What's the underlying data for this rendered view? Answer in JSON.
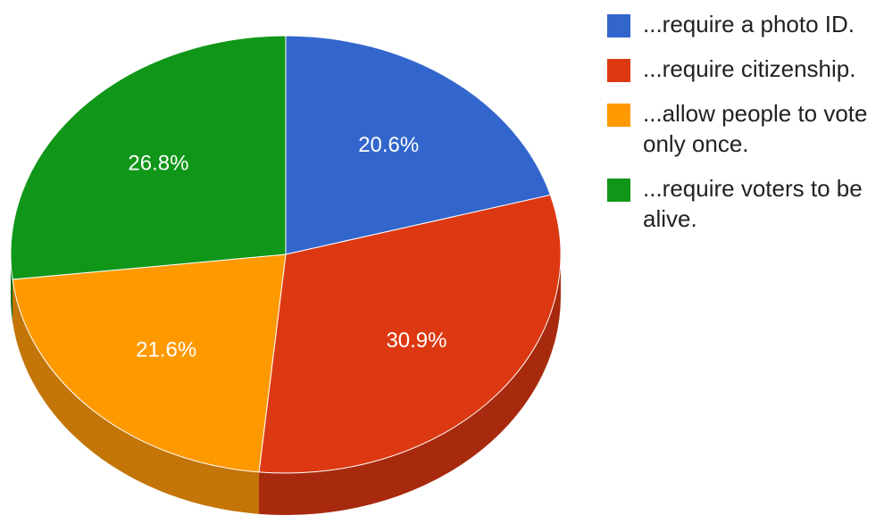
{
  "chart_data": {
    "type": "pie",
    "title": "",
    "slices": [
      {
        "label": "...require a photo ID.",
        "value": 20.6,
        "value_label": "20.6%",
        "color": "#3366cc",
        "side_color": "#2a4f9e"
      },
      {
        "label": "...require citizenship.",
        "value": 30.9,
        "value_label": "30.9%",
        "color": "#dc3912",
        "side_color": "#a82a0e"
      },
      {
        "label": "...allow people to vote only once.",
        "value": 21.6,
        "value_label": "21.6%",
        "color": "#ff9900",
        "side_color": "#c37508"
      },
      {
        "label": "...require voters to be alive.",
        "value": 26.8,
        "value_label": "26.8%",
        "color": "#109618",
        "side_color": "#0b6b12"
      }
    ],
    "start_angle": "12 o'clock",
    "direction": "clockwise",
    "style": "3d",
    "legend_position": "right"
  }
}
